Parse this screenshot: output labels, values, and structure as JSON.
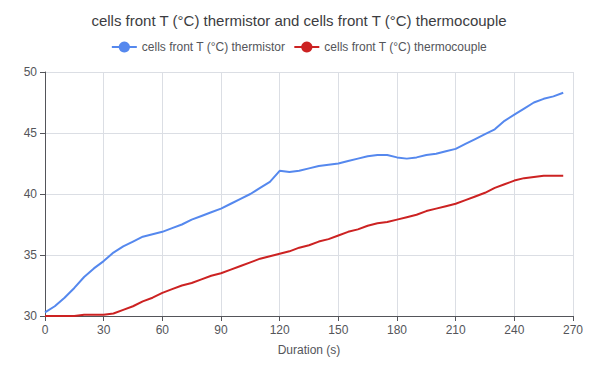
{
  "chart_data": {
    "type": "line",
    "title": "cells front T (°C) thermistor and cells front T (°C) thermocouple",
    "x_label": "Duration (s)",
    "x": [
      0,
      5,
      10,
      15,
      20,
      25,
      30,
      35,
      40,
      45,
      50,
      55,
      60,
      65,
      70,
      75,
      80,
      85,
      90,
      95,
      100,
      105,
      110,
      115,
      120,
      125,
      130,
      135,
      140,
      145,
      150,
      155,
      160,
      165,
      170,
      175,
      180,
      185,
      190,
      195,
      200,
      205,
      210,
      215,
      220,
      225,
      230,
      235,
      240,
      245,
      250,
      255,
      260,
      265
    ],
    "series": [
      {
        "name": "cells front T (°C) thermistor",
        "color": "#5588ee",
        "values": [
          30.3,
          30.8,
          31.5,
          32.3,
          33.2,
          33.9,
          34.5,
          35.2,
          35.7,
          36.1,
          36.5,
          36.7,
          36.9,
          37.2,
          37.5,
          37.9,
          38.2,
          38.5,
          38.8,
          39.2,
          39.6,
          40.0,
          40.5,
          41.0,
          41.9,
          41.8,
          41.9,
          42.1,
          42.3,
          42.4,
          42.5,
          42.7,
          42.9,
          43.1,
          43.2,
          43.2,
          43.0,
          42.9,
          43.0,
          43.2,
          43.3,
          43.5,
          43.7,
          44.1,
          44.5,
          44.9,
          45.3,
          46.0,
          46.5,
          47.0,
          47.5,
          47.8,
          48.0,
          48.3
        ]
      },
      {
        "name": "cells front T (°C) thermocouple",
        "color": "#cc2222",
        "values": [
          30.0,
          30.0,
          30.0,
          30.0,
          30.1,
          30.1,
          30.1,
          30.2,
          30.5,
          30.8,
          31.2,
          31.5,
          31.9,
          32.2,
          32.5,
          32.7,
          33.0,
          33.3,
          33.5,
          33.8,
          34.1,
          34.4,
          34.7,
          34.9,
          35.1,
          35.3,
          35.6,
          35.8,
          36.1,
          36.3,
          36.6,
          36.9,
          37.1,
          37.4,
          37.6,
          37.7,
          37.9,
          38.1,
          38.3,
          38.6,
          38.8,
          39.0,
          39.2,
          39.5,
          39.8,
          40.1,
          40.5,
          40.8,
          41.1,
          41.3,
          41.4,
          41.5,
          41.5,
          41.5
        ]
      }
    ],
    "xlim": [
      0,
      270
    ],
    "ylim": [
      30,
      50
    ],
    "xticks": [
      0,
      30,
      60,
      90,
      120,
      150,
      180,
      210,
      240,
      270
    ],
    "yticks": [
      30,
      35,
      40,
      45,
      50
    ],
    "grid": true,
    "legend": "top"
  }
}
